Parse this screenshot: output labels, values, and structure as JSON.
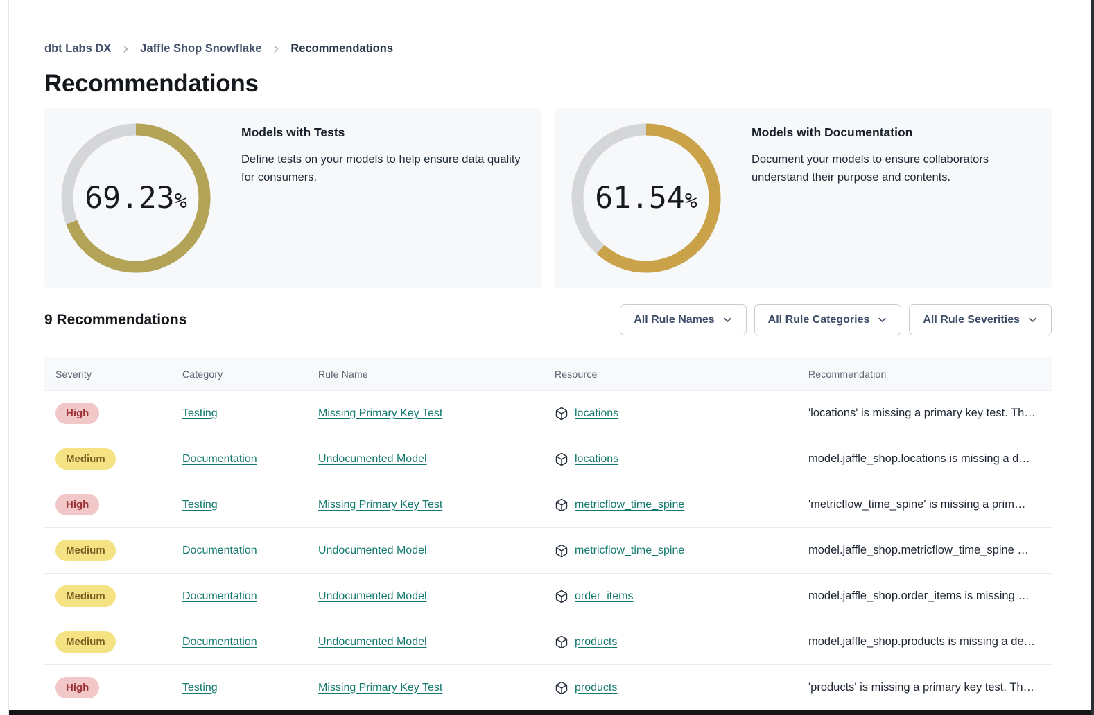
{
  "breadcrumb": {
    "items": [
      "dbt Labs DX",
      "Jaffle Shop Snowflake",
      "Recommendations"
    ]
  },
  "page": {
    "title": "Recommendations"
  },
  "summary_cards": [
    {
      "title": "Models with Tests",
      "description": "Define tests on your models to help ensure data quality for consumers.",
      "percent_label": "69.23",
      "percent_suffix": "%",
      "percent_value": 69.23,
      "arc_color": "#b2a356"
    },
    {
      "title": "Models with Documentation",
      "description": "Document your models to ensure collaborators understand their purpose and contents.",
      "percent_label": "61.54",
      "percent_suffix": "%",
      "percent_value": 61.54,
      "arc_color": "#c9a24a"
    }
  ],
  "recommendations": {
    "count_heading": "9 Recommendations",
    "filters": [
      {
        "label": "All Rule Names",
        "icon": "chevron-down-icon"
      },
      {
        "label": "All Rule Categories",
        "icon": "chevron-down-icon"
      },
      {
        "label": "All Rule Severities",
        "icon": "chevron-down-icon"
      }
    ],
    "table": {
      "columns": [
        "Severity",
        "Category",
        "Rule Name",
        "Resource",
        "Recommendation"
      ],
      "resource_icon": "box-icon",
      "rows": [
        {
          "severity": "High",
          "category": "Testing",
          "rule_name": "Missing Primary Key Test",
          "resource": "locations",
          "recommendation": "'locations' is missing a primary key test. Th…"
        },
        {
          "severity": "Medium",
          "category": "Documentation",
          "rule_name": "Undocumented Model",
          "resource": "locations",
          "recommendation": "model.jaffle_shop.locations is missing a d…"
        },
        {
          "severity": "High",
          "category": "Testing",
          "rule_name": "Missing Primary Key Test",
          "resource": "metricflow_time_spine",
          "recommendation": "'metricflow_time_spine' is missing a prim…"
        },
        {
          "severity": "Medium",
          "category": "Documentation",
          "rule_name": "Undocumented Model",
          "resource": "metricflow_time_spine",
          "recommendation": "model.jaffle_shop.metricflow_time_spine …"
        },
        {
          "severity": "Medium",
          "category": "Documentation",
          "rule_name": "Undocumented Model",
          "resource": "order_items",
          "recommendation": "model.jaffle_shop.order_items is missing …"
        },
        {
          "severity": "Medium",
          "category": "Documentation",
          "rule_name": "Undocumented Model",
          "resource": "products",
          "recommendation": "model.jaffle_shop.products is missing a de…"
        },
        {
          "severity": "High",
          "category": "Testing",
          "rule_name": "Missing Primary Key Test",
          "resource": "products",
          "recommendation": "'products' is missing a primary key test. Th…"
        }
      ]
    }
  },
  "colors": {
    "accent_teal": "#13796d",
    "donut_track": "#d5d6d8",
    "donut_tests_arc": "#b2a356",
    "donut_docs_arc": "#c9a24a",
    "severity_high_bg": "#f2c7c8",
    "severity_high_text": "#9c3235",
    "severity_medium_bg": "#f5e283",
    "severity_medium_text": "#7a5c22",
    "card_bg": "#f7f8f9"
  }
}
